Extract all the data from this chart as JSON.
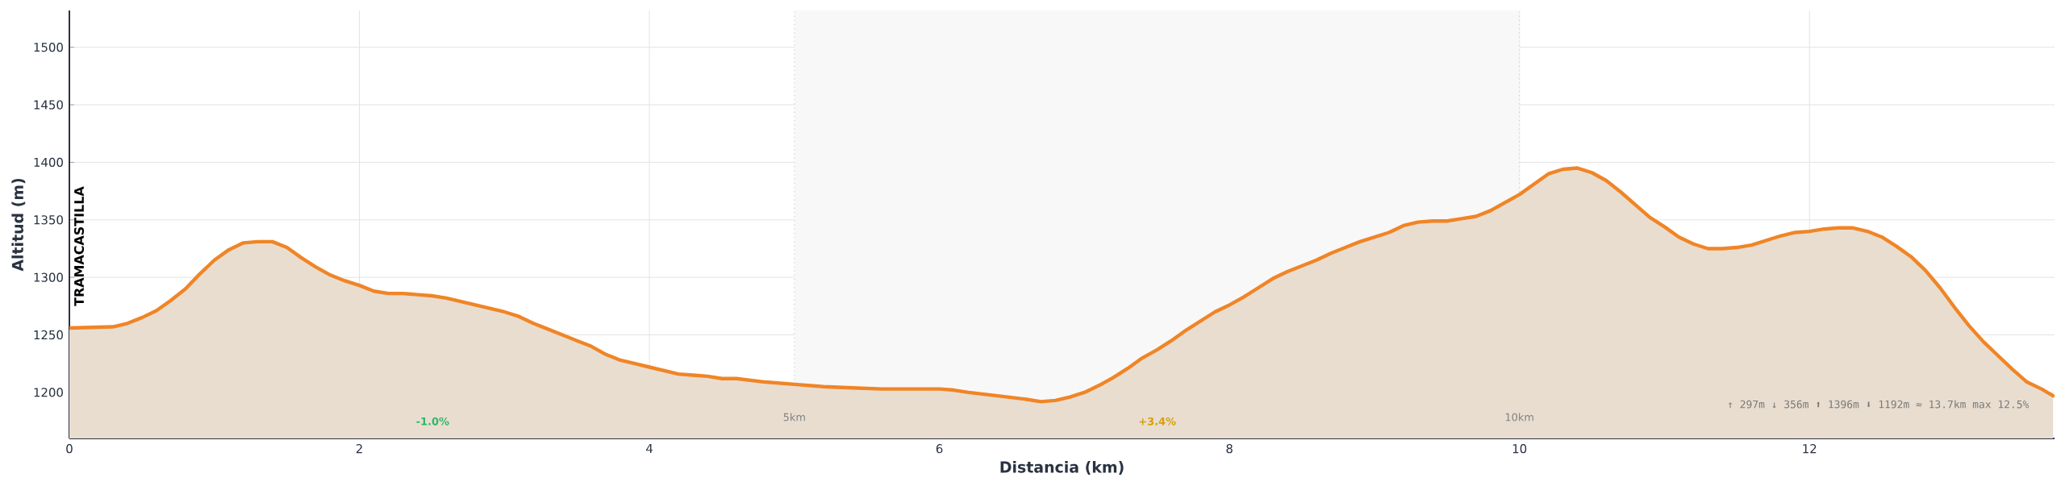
{
  "chart_data": {
    "type": "area",
    "xlabel": "Distancia (km)",
    "ylabel": "Altitud (m)",
    "x": [
      0,
      0.3,
      0.4,
      0.5,
      0.6,
      0.7,
      0.8,
      0.9,
      1.0,
      1.1,
      1.2,
      1.3,
      1.4,
      1.5,
      1.6,
      1.7,
      1.8,
      1.9,
      2.0,
      2.1,
      2.2,
      2.3,
      2.4,
      2.5,
      2.6,
      2.7,
      2.8,
      2.9,
      3.0,
      3.1,
      3.2,
      3.3,
      3.4,
      3.5,
      3.6,
      3.7,
      3.8,
      3.9,
      4.0,
      4.1,
      4.2,
      4.3,
      4.4,
      4.5,
      4.6,
      4.8,
      5.0,
      5.2,
      5.4,
      5.6,
      5.7,
      5.8,
      6.0,
      6.1,
      6.2,
      6.4,
      6.6,
      6.7,
      6.8,
      6.9,
      7.0,
      7.1,
      7.2,
      7.3,
      7.4,
      7.5,
      7.6,
      7.7,
      7.8,
      7.9,
      8.0,
      8.1,
      8.2,
      8.3,
      8.4,
      8.5,
      8.6,
      8.7,
      8.8,
      8.9,
      9.0,
      9.1,
      9.2,
      9.3,
      9.4,
      9.5,
      9.6,
      9.7,
      9.8,
      9.9,
      10.0,
      10.1,
      10.2,
      10.3,
      10.4,
      10.5,
      10.6,
      10.7,
      10.8,
      10.9,
      11.0,
      11.1,
      11.2,
      11.3,
      11.4,
      11.5,
      11.6,
      11.7,
      11.8,
      11.9,
      12.0,
      12.1,
      12.2,
      12.3,
      12.4,
      12.5,
      12.6,
      12.7,
      12.8,
      12.9,
      13.0,
      13.1,
      13.2,
      13.3,
      13.4,
      13.5,
      13.6,
      13.68
    ],
    "series": [
      {
        "color": "#f08526",
        "values": [
          1256,
          1257,
          1260,
          1265,
          1271,
          1280,
          1290,
          1303,
          1315,
          1324,
          1330,
          1331,
          1331,
          1326,
          1317,
          1309,
          1302,
          1297,
          1293,
          1288,
          1286,
          1286,
          1285,
          1284,
          1282,
          1279,
          1276,
          1273,
          1270,
          1266,
          1260,
          1255,
          1250,
          1245,
          1240,
          1233,
          1228,
          1225,
          1222,
          1219,
          1216,
          1215,
          1214,
          1212,
          1212,
          1209,
          1207,
          1205,
          1204,
          1203,
          1203,
          1203,
          1203,
          1202,
          1200,
          1197,
          1194,
          1192,
          1193,
          1196,
          1200,
          1206,
          1213,
          1221,
          1230,
          1237,
          1245,
          1254,
          1262,
          1270,
          1276,
          1283,
          1291,
          1299,
          1305,
          1310,
          1315,
          1321,
          1326,
          1331,
          1335,
          1339,
          1345,
          1348,
          1349,
          1349,
          1351,
          1353,
          1358,
          1365,
          1372,
          1381,
          1390,
          1394,
          1395,
          1391,
          1384,
          1374,
          1363,
          1352,
          1344,
          1335,
          1329,
          1325,
          1325,
          1326,
          1328,
          1332,
          1336,
          1339,
          1340,
          1342,
          1343,
          1343,
          1340,
          1335,
          1327,
          1318,
          1306,
          1291,
          1274,
          1258,
          1244,
          1232,
          1220,
          1209,
          1203,
          1197
        ]
      }
    ],
    "xlim": [
      0,
      13.69
    ],
    "ylim": [
      1160,
      1532
    ],
    "xticks": [
      0,
      2,
      4,
      6,
      8,
      10,
      12
    ],
    "yticks": [
      1200,
      1250,
      1300,
      1350,
      1400,
      1450,
      1500
    ],
    "grid": true,
    "bands": [
      {
        "axis": "x",
        "from": 5,
        "to": 10,
        "color": "#f8f8f8"
      }
    ],
    "ref_lines": [
      {
        "axis": "x",
        "value": 5,
        "label": "5km",
        "color": "#cccccc",
        "line_style": "dotted"
      },
      {
        "axis": "x",
        "value": 10,
        "label": "10km",
        "color": "#cccccc",
        "line_style": "dotted"
      }
    ],
    "annotations": [
      {
        "text": "TRAMACASTILLA",
        "x": 0,
        "y": 1256
      },
      "-1.0%",
      "+3.4%",
      "↑ 297m  ↓ 356m  ⬆ 1396m  ⬇ 1192m  ≈ 13.7km  max 12.5%"
    ]
  }
}
